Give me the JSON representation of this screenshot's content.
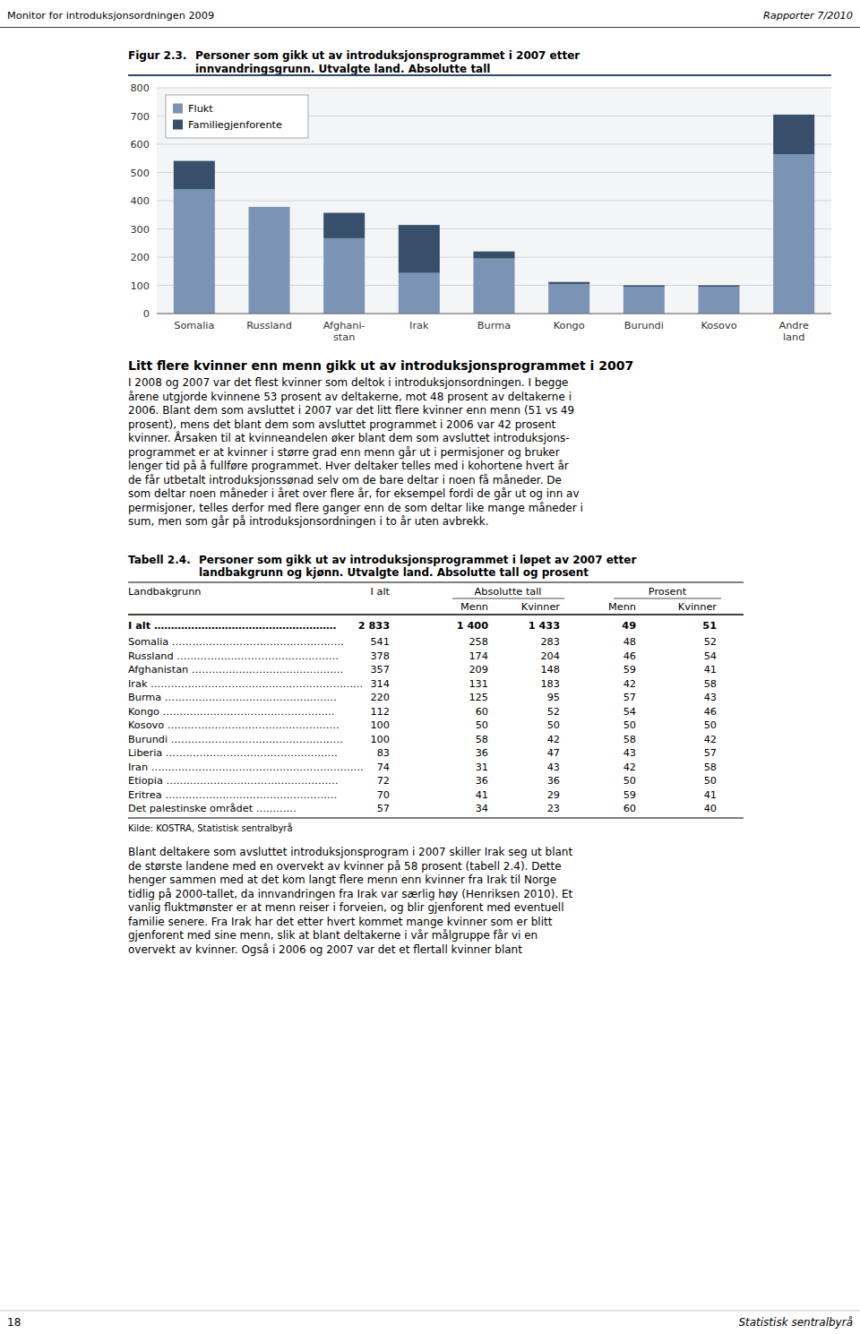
{
  "chart_data": {
    "type": "bar",
    "title": "Personer som gikk ut av introduksjonsprogrammet i 2007 etter\ninnvandringsgrunn. Utvalgte land. Absolutte tall",
    "categories": [
      "Somalia",
      "Russland",
      "Afghani-\nstan",
      "Irak",
      "Burma",
      "Kongo",
      "Burundi",
      "Kosovo",
      "Andre\nland"
    ],
    "series": [
      {
        "name": "Flukt",
        "color": "#7b93b4",
        "values": [
          441,
          378,
          267,
          144,
          195,
          105,
          95,
          95,
          565
        ]
      },
      {
        "name": "Familiegjenforente",
        "color": "#374f6b",
        "values": [
          100,
          0,
          90,
          170,
          25,
          7,
          5,
          5,
          140
        ]
      }
    ],
    "stacked": true,
    "ylim": [
      0,
      800
    ],
    "yticks": [
      0,
      100,
      200,
      300,
      400,
      500,
      600,
      700,
      800
    ],
    "grid": true,
    "legend": "upper left"
  },
  "page": {
    "header_left": "Monitor for introduksjonsordningen 2009",
    "header_right": "Rapporter 7/2010",
    "fig_label": "Figur 2.3.",
    "section_title": "Litt flere kvinner enn menn gikk ut av introduksjonsprogrammet i 2007",
    "body_lines": [
      "I 2008 og 2007 var det flest kvinner som deltok i introduksjonsordningen. I begge",
      "årene utgjorde kvinnene 53 prosent av deltakerne, mot 48 prosent av deltakerne i",
      "2006. Blant dem som avsluttet i 2007 var det litt flere kvinner enn menn (51 vs 49",
      "prosent), mens det blant dem som avsluttet programmet i 2006 var 42 prosent",
      "kvinner. Årsaken til at kvinneandelen øker blant dem som avsluttet introduksjons-",
      "programmet er at kvinner i større grad enn menn går ut i permisjoner og bruker",
      "lenger tid på å fullføre programmet. Hver deltaker telles med i kohortene hvert år",
      "de får utbetalt introduksjonssønad selv om de bare deltar i noen få måneder. De",
      "som deltar noen måneder i året over flere år, for eksempel fordi de går ut og inn av",
      "permisjoner, telles derfor med flere ganger enn de som deltar like mange måneder i",
      "sum, men som går på introduksjonsordningen i to år uten avbrekk."
    ],
    "table": {
      "label": "Tabell 2.4.",
      "title_lines": [
        "Personer som gikk ut av introduksjonsprogrammet i løpet av 2007 etter",
        "landbakgrunn og kjønn. Utvalgte land. Absolutte tall og prosent"
      ],
      "group_headers": [
        "Landbakgrunn",
        "I alt",
        "Absolutte tall",
        "Prosent"
      ],
      "sub_headers": [
        "Menn",
        "Kvinner",
        "Menn",
        "Kvinner"
      ],
      "rows": [
        [
          "I alt ………………………………………………",
          "2 833",
          "1 400",
          "1 433",
          "49",
          "51"
        ],
        [
          "Somalia ……………………………………………",
          "541",
          "258",
          "283",
          "48",
          "52"
        ],
        [
          "Russland …………………………………………",
          "378",
          "174",
          "204",
          "46",
          "54"
        ],
        [
          "Afghanistan ………………………………………",
          "357",
          "209",
          "148",
          "59",
          "41"
        ],
        [
          "Irak ………………………………………………………",
          "314",
          "131",
          "183",
          "42",
          "58"
        ],
        [
          "Burma ……………………………………………",
          "220",
          "125",
          "95",
          "57",
          "43"
        ],
        [
          "Kongo ……………………………………………",
          "112",
          "60",
          "52",
          "54",
          "46"
        ],
        [
          "Kosovo ……………………………………………",
          "100",
          "50",
          "50",
          "50",
          "50"
        ],
        [
          "Burundi ……………………………………………",
          "100",
          "58",
          "42",
          "58",
          "42"
        ],
        [
          "Liberia ……………………………………………",
          "83",
          "36",
          "47",
          "43",
          "57"
        ],
        [
          "Iran ………………………………………………………",
          "74",
          "31",
          "43",
          "42",
          "58"
        ],
        [
          "Etiopia ……………………………………………",
          "72",
          "36",
          "36",
          "50",
          "50"
        ],
        [
          "Eritrea ……………………………………………",
          "70",
          "41",
          "29",
          "59",
          "41"
        ],
        [
          "Det palestinske området …………",
          "57",
          "34",
          "23",
          "60",
          "40"
        ]
      ],
      "source": "Kilde: KOSTRA, Statistisk sentralbyrå"
    },
    "bottom_lines": [
      "Blant deltakere som avsluttet introduksjonsprogram i 2007 skiller Irak seg ut blant",
      "de største landene med en overvekt av kvinner på 58 prosent (tabell 2.4). Dette",
      "henger sammen med at det kom langt flere menn enn kvinner fra Irak til Norge",
      "tidlig på 2000-tallet, da innvandringen fra Irak var særlig høy (Henriksen 2010). Et",
      "vanlig fluktmønster er at menn reiser i forveien, og blir gjenforent med eventuell",
      "familie senere. Fra Irak har det etter hvert kommet mange kvinner som er blitt",
      "gjenforent med sine menn, slik at blant deltakerne i vår målgruppe får vi en",
      "overvekt av kvinner. Også i 2006 og 2007 var det et flertall kvinner blant"
    ],
    "page_number": "18",
    "footer_right": "Statistisk sentralbyrå"
  }
}
